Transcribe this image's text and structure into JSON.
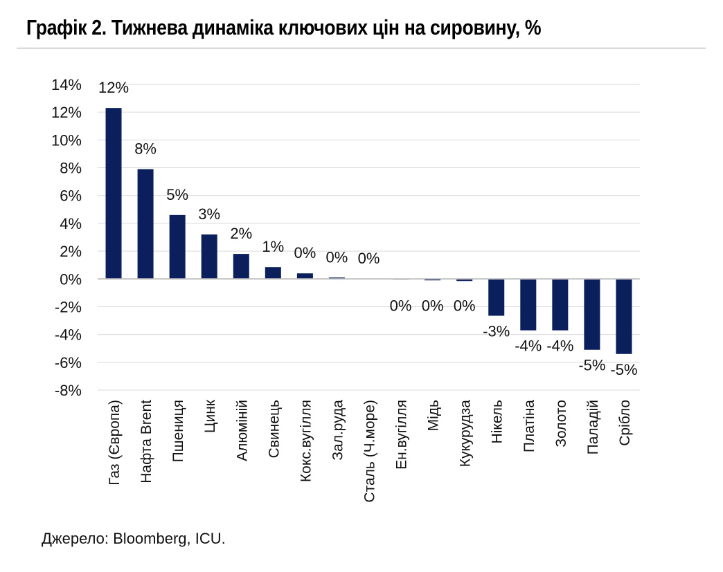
{
  "header": {
    "title": "Графік 2. Тижнева динаміка ключових цін на сировину, %"
  },
  "footer": {
    "source": "Джерело: Bloomberg, ICU."
  },
  "chart_data": {
    "type": "bar",
    "title": "Графік 2. Тижнева динаміка ключових цін на сировину, %",
    "xlabel": "",
    "ylabel": "",
    "ylim": [
      -8,
      14
    ],
    "yticks": [
      14,
      12,
      10,
      8,
      6,
      4,
      2,
      0,
      -2,
      -4,
      -6,
      -8
    ],
    "ytick_labels": [
      "14%",
      "12%",
      "10%",
      "8%",
      "6%",
      "4%",
      "2%",
      "0%",
      "-2%",
      "-4%",
      "-6%",
      "-8%"
    ],
    "grid": true,
    "legend": "none",
    "bar_color": "#0a1f5c",
    "categories": [
      "Газ (Європа)",
      "Нафта Brent",
      "Пшениця",
      "Цинк",
      "Алюміній",
      "Свинець",
      "Кокс.вугілля",
      "Зал.руда",
      "Сталь (Ч.море)",
      "Ен.вугілля",
      "Мідь",
      "Кукурудза",
      "Нікель",
      "Платіна",
      "Золото",
      "Паладій",
      "Срібло"
    ],
    "values": [
      12.3,
      7.9,
      4.6,
      3.2,
      1.8,
      0.85,
      0.4,
      0.1,
      0.02,
      -0.04,
      -0.1,
      -0.15,
      -2.65,
      -3.7,
      -3.7,
      -5.1,
      -5.4
    ],
    "data_labels": [
      "12%",
      "8%",
      "5%",
      "3%",
      "2%",
      "1%",
      "0%",
      "0%",
      "0%",
      "0%",
      "0%",
      "0%",
      "-3%",
      "-4%",
      "-4%",
      "-5%",
      "-5%"
    ]
  }
}
